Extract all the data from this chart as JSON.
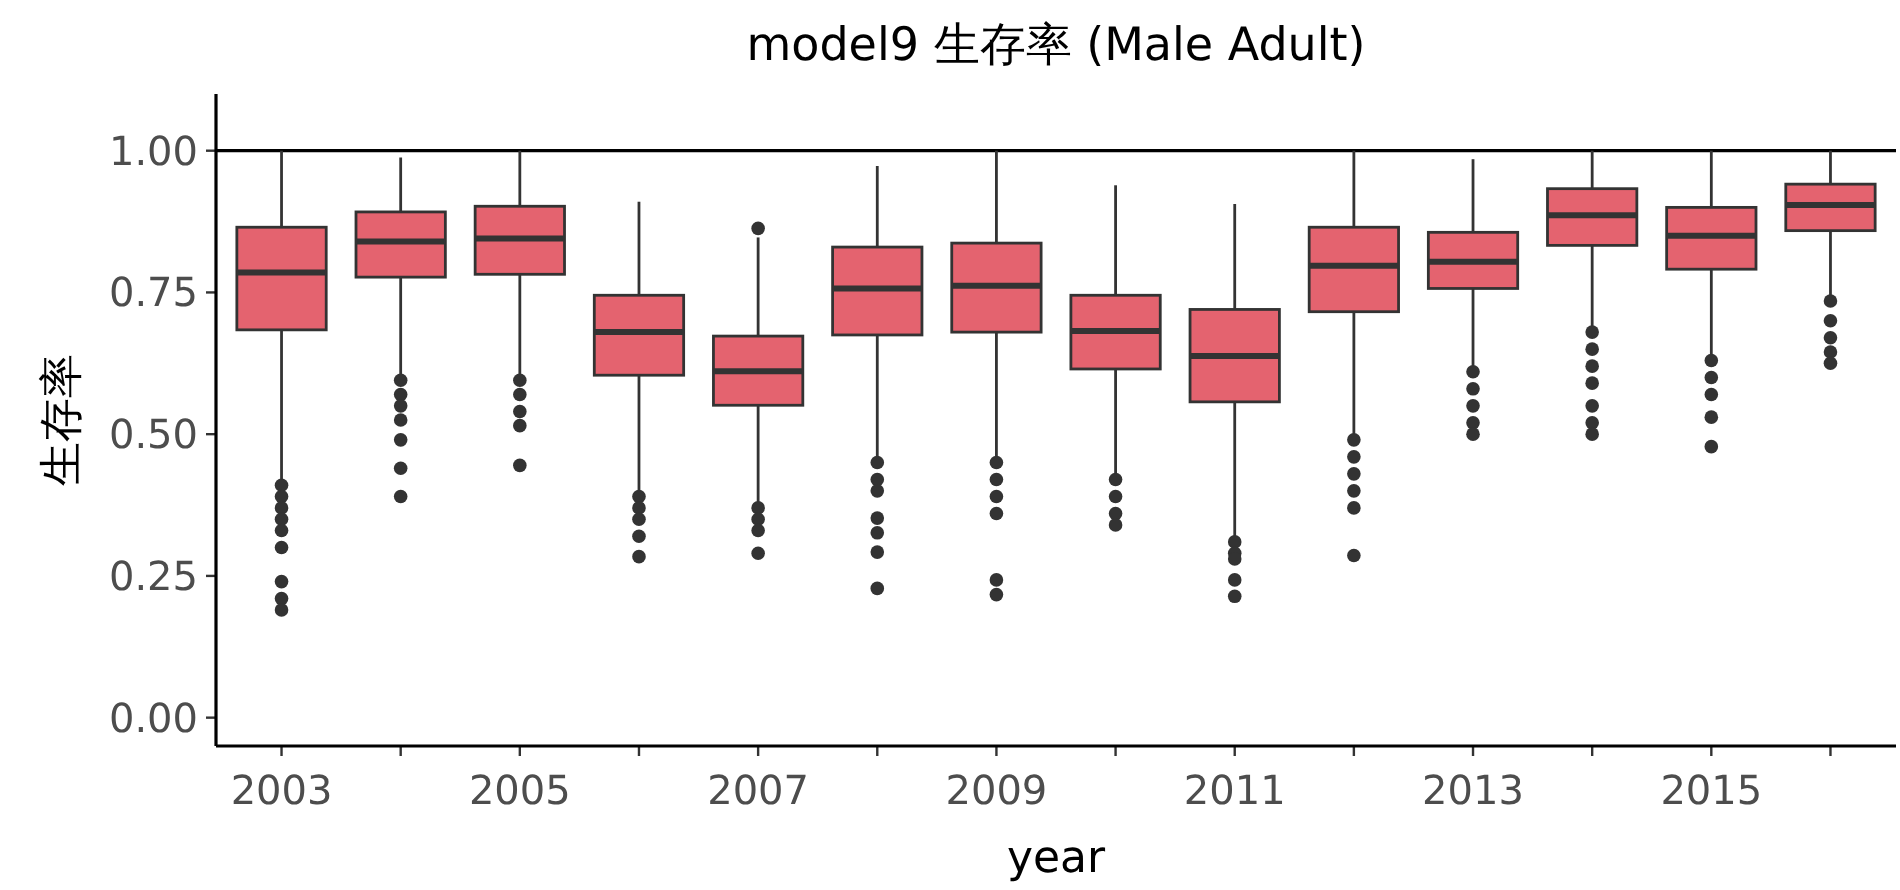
{
  "chart_data": {
    "type": "box",
    "title": "model9 生存率 (Male Adult)",
    "xlabel": "year",
    "ylabel": "生存率",
    "categories": [
      "2003",
      null,
      "2005",
      null,
      "2007",
      null,
      "2009",
      null,
      "2011",
      null,
      "2013",
      null,
      "2015",
      null
    ],
    "color": "#e4636f",
    "boxes": [
      {
        "low": 0.42,
        "q1": 0.684,
        "median": 0.785,
        "q3": 0.865,
        "high": 1.0,
        "outliers": [
          0.41,
          0.39,
          0.37,
          0.35,
          0.33,
          0.3,
          0.24,
          0.21,
          0.19
        ]
      },
      {
        "low": 0.603,
        "q1": 0.777,
        "median": 0.84,
        "q3": 0.892,
        "high": 0.988,
        "outliers": [
          0.595,
          0.57,
          0.55,
          0.525,
          0.49,
          0.44,
          0.39
        ]
      },
      {
        "low": 0.601,
        "q1": 0.782,
        "median": 0.845,
        "q3": 0.902,
        "high": 1.0,
        "outliers": [
          0.595,
          0.57,
          0.54,
          0.515,
          0.445
        ]
      },
      {
        "low": 0.392,
        "q1": 0.604,
        "median": 0.68,
        "q3": 0.745,
        "high": 0.91,
        "outliers": [
          0.39,
          0.37,
          0.35,
          0.32,
          0.284
        ]
      },
      {
        "low": 0.372,
        "q1": 0.551,
        "median": 0.611,
        "q3": 0.673,
        "high": 0.847,
        "outliers": [
          0.863,
          0.37,
          0.35,
          0.33,
          0.29
        ]
      },
      {
        "low": 0.452,
        "q1": 0.675,
        "median": 0.757,
        "q3": 0.83,
        "high": 0.973,
        "outliers": [
          0.45,
          0.42,
          0.4,
          0.352,
          0.326,
          0.292,
          0.228
        ]
      },
      {
        "low": 0.452,
        "q1": 0.68,
        "median": 0.762,
        "q3": 0.837,
        "high": 1.0,
        "outliers": [
          0.45,
          0.42,
          0.39,
          0.36,
          0.243,
          0.217
        ]
      },
      {
        "low": 0.423,
        "q1": 0.615,
        "median": 0.682,
        "q3": 0.745,
        "high": 0.939,
        "outliers": [
          0.42,
          0.39,
          0.36,
          0.34
        ]
      },
      {
        "low": 0.313,
        "q1": 0.557,
        "median": 0.638,
        "q3": 0.72,
        "high": 0.906,
        "outliers": [
          0.31,
          0.29,
          0.28,
          0.243,
          0.214
        ]
      },
      {
        "low": 0.495,
        "q1": 0.716,
        "median": 0.797,
        "q3": 0.865,
        "high": 1.0,
        "outliers": [
          0.49,
          0.46,
          0.43,
          0.4,
          0.37,
          0.286
        ]
      },
      {
        "low": 0.616,
        "q1": 0.757,
        "median": 0.804,
        "q3": 0.856,
        "high": 0.985,
        "outliers": [
          0.61,
          0.58,
          0.55,
          0.52,
          0.5
        ]
      },
      {
        "low": 0.687,
        "q1": 0.833,
        "median": 0.886,
        "q3": 0.933,
        "high": 1.0,
        "outliers": [
          0.68,
          0.65,
          0.62,
          0.59,
          0.55,
          0.52,
          0.5
        ]
      },
      {
        "low": 0.633,
        "q1": 0.791,
        "median": 0.85,
        "q3": 0.9,
        "high": 1.0,
        "outliers": [
          0.63,
          0.6,
          0.57,
          0.53,
          0.478
        ]
      },
      {
        "low": 0.738,
        "q1": 0.859,
        "median": 0.904,
        "q3": 0.941,
        "high": 1.0,
        "outliers": [
          0.735,
          0.7,
          0.67,
          0.645,
          0.625
        ]
      }
    ],
    "ylim": [
      -0.05,
      1.1
    ],
    "yticks": [
      {
        "value": 0,
        "label": "0.00"
      },
      {
        "value": 0.25,
        "label": "0.25"
      },
      {
        "value": 0.5,
        "label": "0.50"
      },
      {
        "value": 0.75,
        "label": "0.75"
      },
      {
        "value": 1,
        "label": "1.00"
      }
    ],
    "ref_lines": [
      {
        "axis": "y",
        "value": 1,
        "color": "#000000"
      }
    ]
  }
}
